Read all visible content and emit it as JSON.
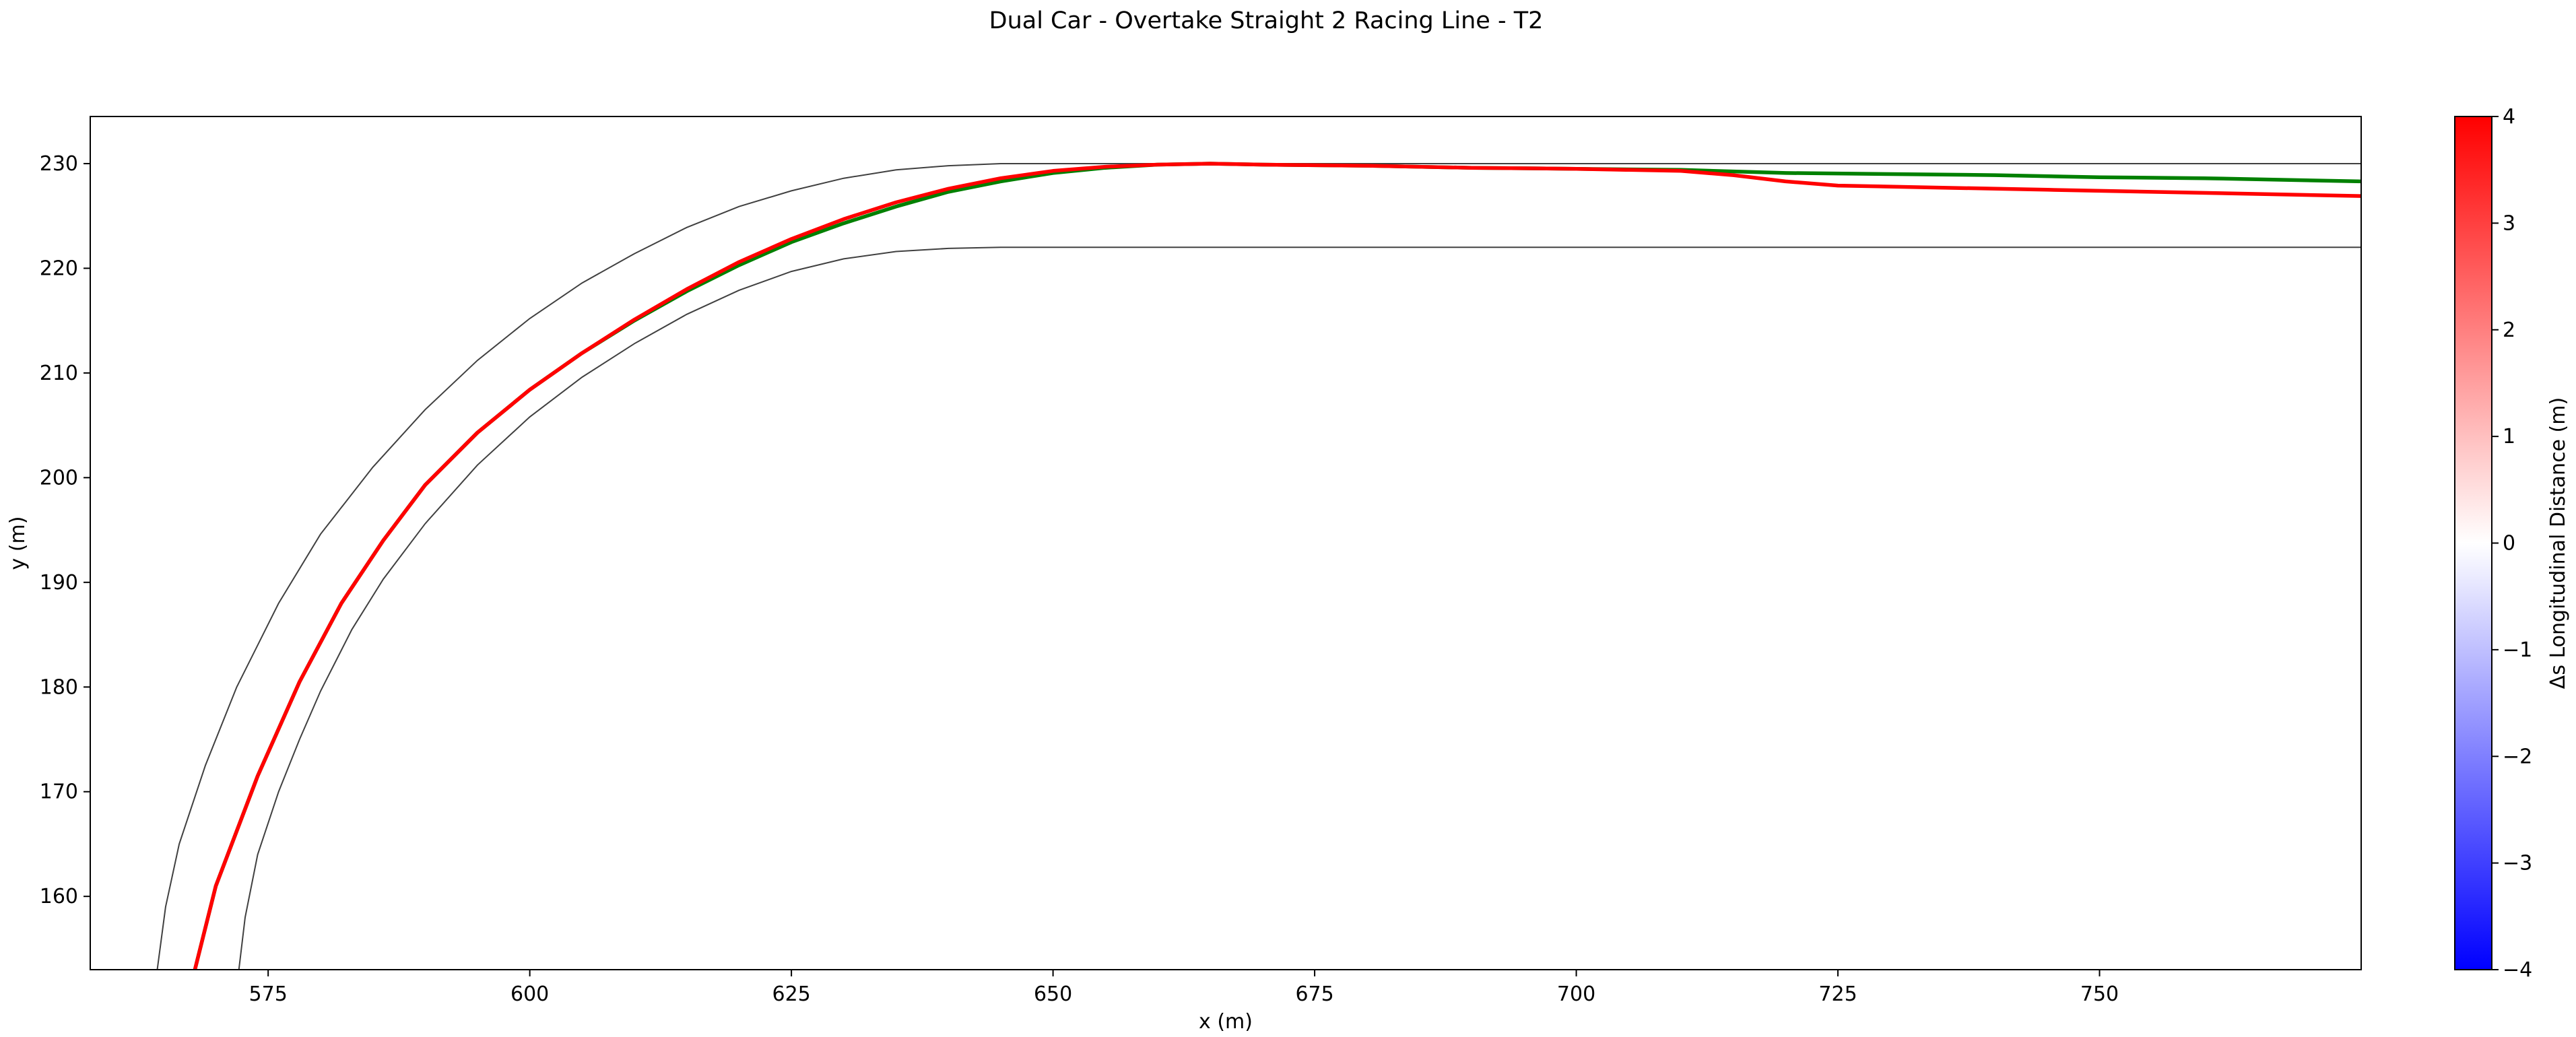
{
  "chart_data": {
    "type": "line",
    "title": "Dual Car - Overtake Straight 2 Racing Line - T2",
    "xlabel": "x (m)",
    "ylabel": "y (m)",
    "xlim": [
      558,
      775
    ],
    "ylim": [
      153,
      234.5
    ],
    "xticks": [
      575,
      600,
      625,
      650,
      675,
      700,
      725,
      750
    ],
    "yticks": [
      160,
      170,
      180,
      190,
      200,
      210,
      220,
      230
    ],
    "grid": false,
    "legend": "none",
    "colorbar": {
      "label": "Δs Longitudinal Distance (m)",
      "range": [
        -4,
        4
      ],
      "ticks": [
        -4,
        -3,
        -2,
        -1,
        0,
        1,
        2,
        3,
        4
      ],
      "colormap": "bwr",
      "colors": {
        "low": "#0000ff",
        "mid": "#ffffff",
        "high": "#ff0000"
      }
    },
    "track_boundaries": [
      {
        "side": "outer",
        "color": "#404040",
        "x": [
          564.4,
          565.2,
          566.5,
          569,
          572,
          576,
          580,
          585,
          590,
          595,
          600,
          605,
          610,
          615,
          620,
          625,
          630,
          635,
          640,
          645,
          650,
          660,
          670,
          700,
          730,
          760,
          775
        ],
        "y": [
          153,
          159,
          165,
          172.5,
          180,
          188,
          194.6,
          201,
          206.5,
          211.2,
          215.2,
          218.6,
          221.4,
          223.9,
          225.9,
          227.4,
          228.6,
          229.4,
          229.8,
          230,
          230,
          230,
          230,
          230,
          230,
          230,
          230
        ]
      },
      {
        "side": "inner",
        "color": "#404040",
        "x": [
          572.2,
          572.8,
          574,
          576,
          578,
          580,
          583,
          586,
          590,
          595,
          600,
          605,
          610,
          615,
          620,
          625,
          630,
          635,
          640,
          645,
          650,
          660,
          700,
          740,
          775
        ],
        "y": [
          153,
          158,
          164,
          170,
          175,
          179.6,
          185.5,
          190.3,
          195.6,
          201.2,
          205.8,
          209.6,
          212.8,
          215.6,
          217.9,
          219.7,
          220.9,
          221.6,
          221.9,
          222,
          222,
          222,
          222,
          222,
          222
        ]
      }
    ],
    "series": [
      {
        "name": "",
        "color": "#008000",
        "x": [
          568,
          570,
          574,
          578,
          582,
          586,
          590,
          595,
          600,
          605,
          610,
          615,
          620,
          625,
          630,
          635,
          640,
          645,
          650,
          655,
          660,
          665,
          670,
          680,
          690,
          700,
          710,
          720,
          730,
          740,
          750,
          760,
          775
        ],
        "y": [
          153,
          161,
          171.5,
          180.5,
          188,
          194,
          199.3,
          204.3,
          208.4,
          211.9,
          215,
          217.8,
          220.3,
          222.5,
          224.3,
          225.9,
          227.3,
          228.3,
          229.1,
          229.6,
          229.9,
          230,
          229.9,
          229.8,
          229.6,
          229.5,
          229.4,
          229.1,
          229,
          228.9,
          228.7,
          228.6,
          228.3
        ]
      },
      {
        "name": "",
        "color": "#ff0000",
        "x": [
          568,
          570,
          574,
          578,
          582,
          586,
          590,
          595,
          600,
          605,
          610,
          615,
          620,
          625,
          630,
          635,
          640,
          645,
          650,
          655,
          660,
          665,
          670,
          680,
          690,
          700,
          705,
          710,
          715,
          720,
          725,
          735,
          745,
          755,
          765,
          775
        ],
        "y": [
          153,
          161,
          171.5,
          180.5,
          188,
          194,
          199.3,
          204.3,
          208.4,
          211.9,
          215.1,
          218,
          220.6,
          222.8,
          224.7,
          226.3,
          227.6,
          228.6,
          229.3,
          229.7,
          229.9,
          230,
          229.9,
          229.8,
          229.6,
          229.5,
          229.4,
          229.3,
          228.9,
          228.3,
          227.9,
          227.7,
          227.5,
          227.3,
          227.1,
          226.9
        ]
      }
    ]
  }
}
